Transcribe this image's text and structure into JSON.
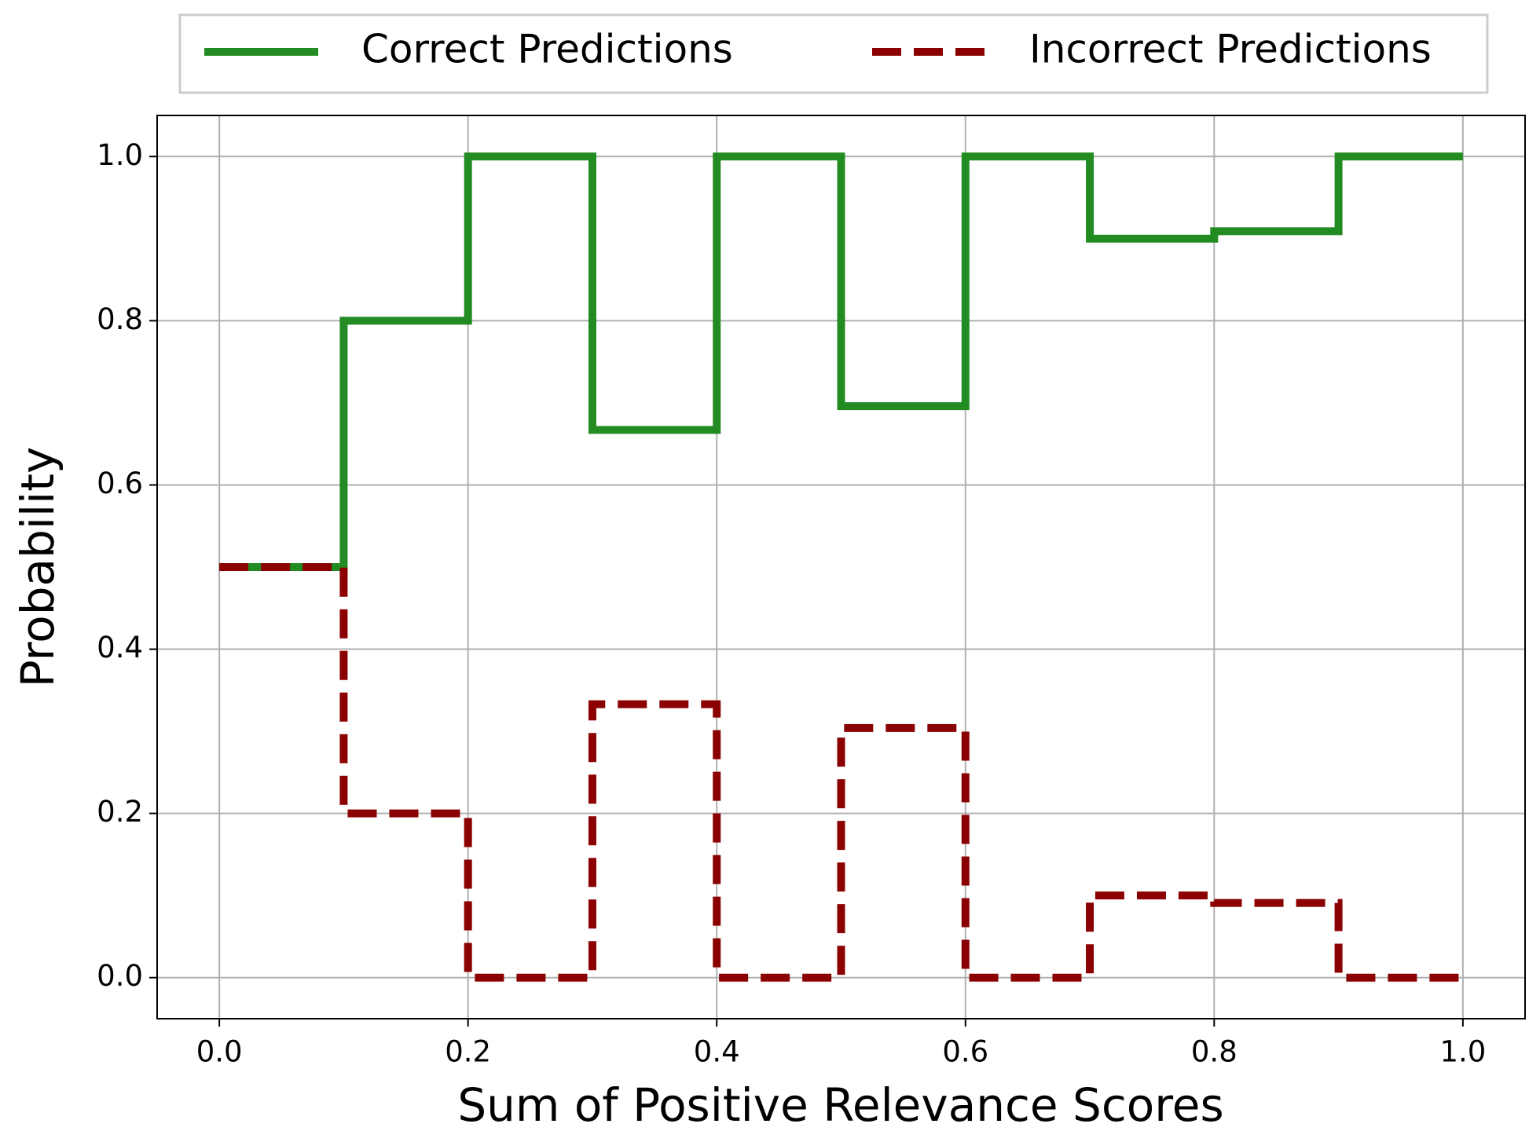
{
  "chart_data": {
    "type": "step",
    "xlabel": "Sum of Positive Relevance Scores",
    "ylabel": "Probability",
    "x": [
      0,
      0.1,
      0.2,
      0.3,
      0.4,
      0.5,
      0.6,
      0.7,
      0.8,
      0.9,
      1.0
    ],
    "series": [
      {
        "name": "Correct Predictions",
        "color": "#228b22",
        "dash": false,
        "values": [
          0.5,
          0.8,
          1.0,
          0.667,
          1.0,
          0.696,
          1.0,
          0.9,
          0.909,
          1.0,
          1.0
        ]
      },
      {
        "name": "Incorrect Predictions",
        "color": "#8b0000",
        "dash": true,
        "values": [
          0.5,
          0.2,
          0.0,
          0.333,
          0.0,
          0.304,
          0.0,
          0.1,
          0.091,
          0.0,
          0.0
        ]
      }
    ],
    "xlim": [
      -0.05,
      1.05
    ],
    "ylim": [
      -0.05,
      1.05
    ],
    "xticks": [
      {
        "value": 0,
        "label": "0.0"
      },
      {
        "value": 0.2,
        "label": "0.2"
      },
      {
        "value": 0.4,
        "label": "0.4"
      },
      {
        "value": 0.6,
        "label": "0.6"
      },
      {
        "value": 0.8,
        "label": "0.8"
      },
      {
        "value": 1,
        "label": "1.0"
      }
    ],
    "yticks": [
      {
        "value": 0,
        "label": "0.0"
      },
      {
        "value": 0.2,
        "label": "0.2"
      },
      {
        "value": 0.4,
        "label": "0.4"
      },
      {
        "value": 0.6,
        "label": "0.6"
      },
      {
        "value": 0.8,
        "label": "0.8"
      },
      {
        "value": 1,
        "label": "1.0"
      }
    ],
    "grid": true,
    "legend": "top"
  }
}
